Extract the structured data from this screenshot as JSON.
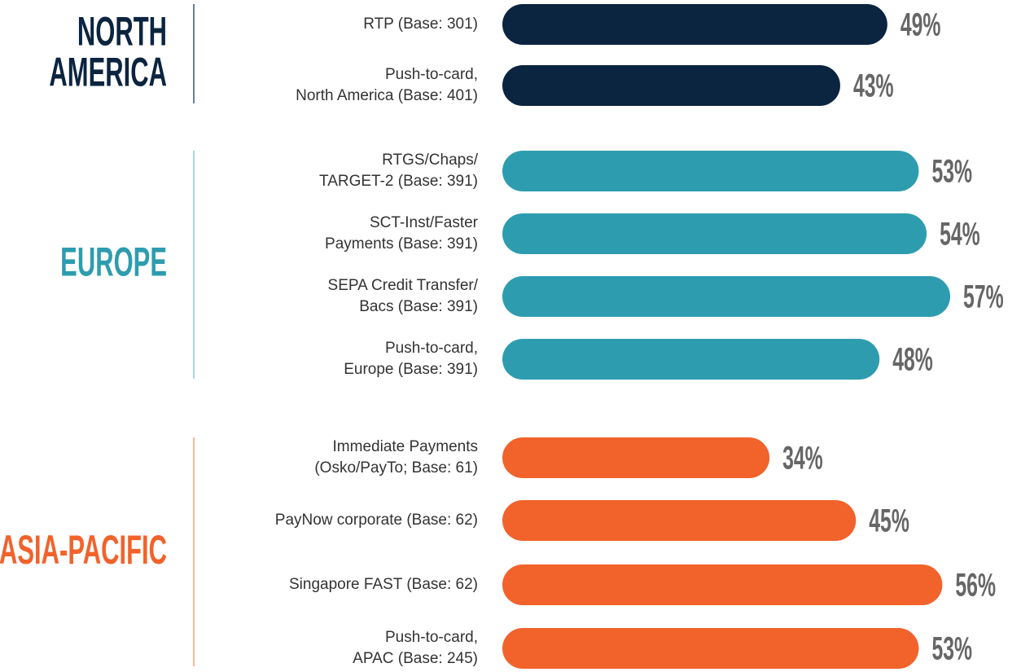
{
  "chart_data": {
    "type": "bar",
    "groups": [
      {
        "name": [
          "NORTH",
          "AMERICA"
        ],
        "color": "#0b2440",
        "categories": [
          [
            "RTP (Base: 301)"
          ],
          [
            "Push-to-card,",
            "North America (Base: 401)"
          ]
        ],
        "values": [
          49,
          43
        ],
        "value_labels": [
          "49%",
          "43%"
        ]
      },
      {
        "name": [
          "EUROPE"
        ],
        "color": "#2e9caf",
        "categories": [
          [
            "RTGS/Chaps/",
            "TARGET-2 (Base: 391)"
          ],
          [
            "SCT-Inst/Faster",
            "Payments (Base: 391)"
          ],
          [
            "SEPA Credit Transfer/",
            "Bacs (Base: 391)"
          ],
          [
            "Push-to-card,",
            "Europe (Base: 391)"
          ]
        ],
        "values": [
          53,
          54,
          57,
          48
        ],
        "value_labels": [
          "53%",
          "54%",
          "57%",
          "48%"
        ]
      },
      {
        "name": [
          "ASIA-PACIFIC"
        ],
        "color": "#f2622b",
        "categories": [
          [
            "Immediate Payments",
            "(Osko/PayTo; Base: 61)"
          ],
          [
            "PayNow corporate (Base: 62)"
          ],
          [
            "Singapore FAST (Base: 62)"
          ],
          [
            "Push-to-card,",
            "APAC (Base: 245)"
          ]
        ],
        "values": [
          34,
          45,
          56,
          53
        ],
        "value_labels": [
          "34%",
          "45%",
          "56%",
          "53%"
        ]
      }
    ]
  }
}
